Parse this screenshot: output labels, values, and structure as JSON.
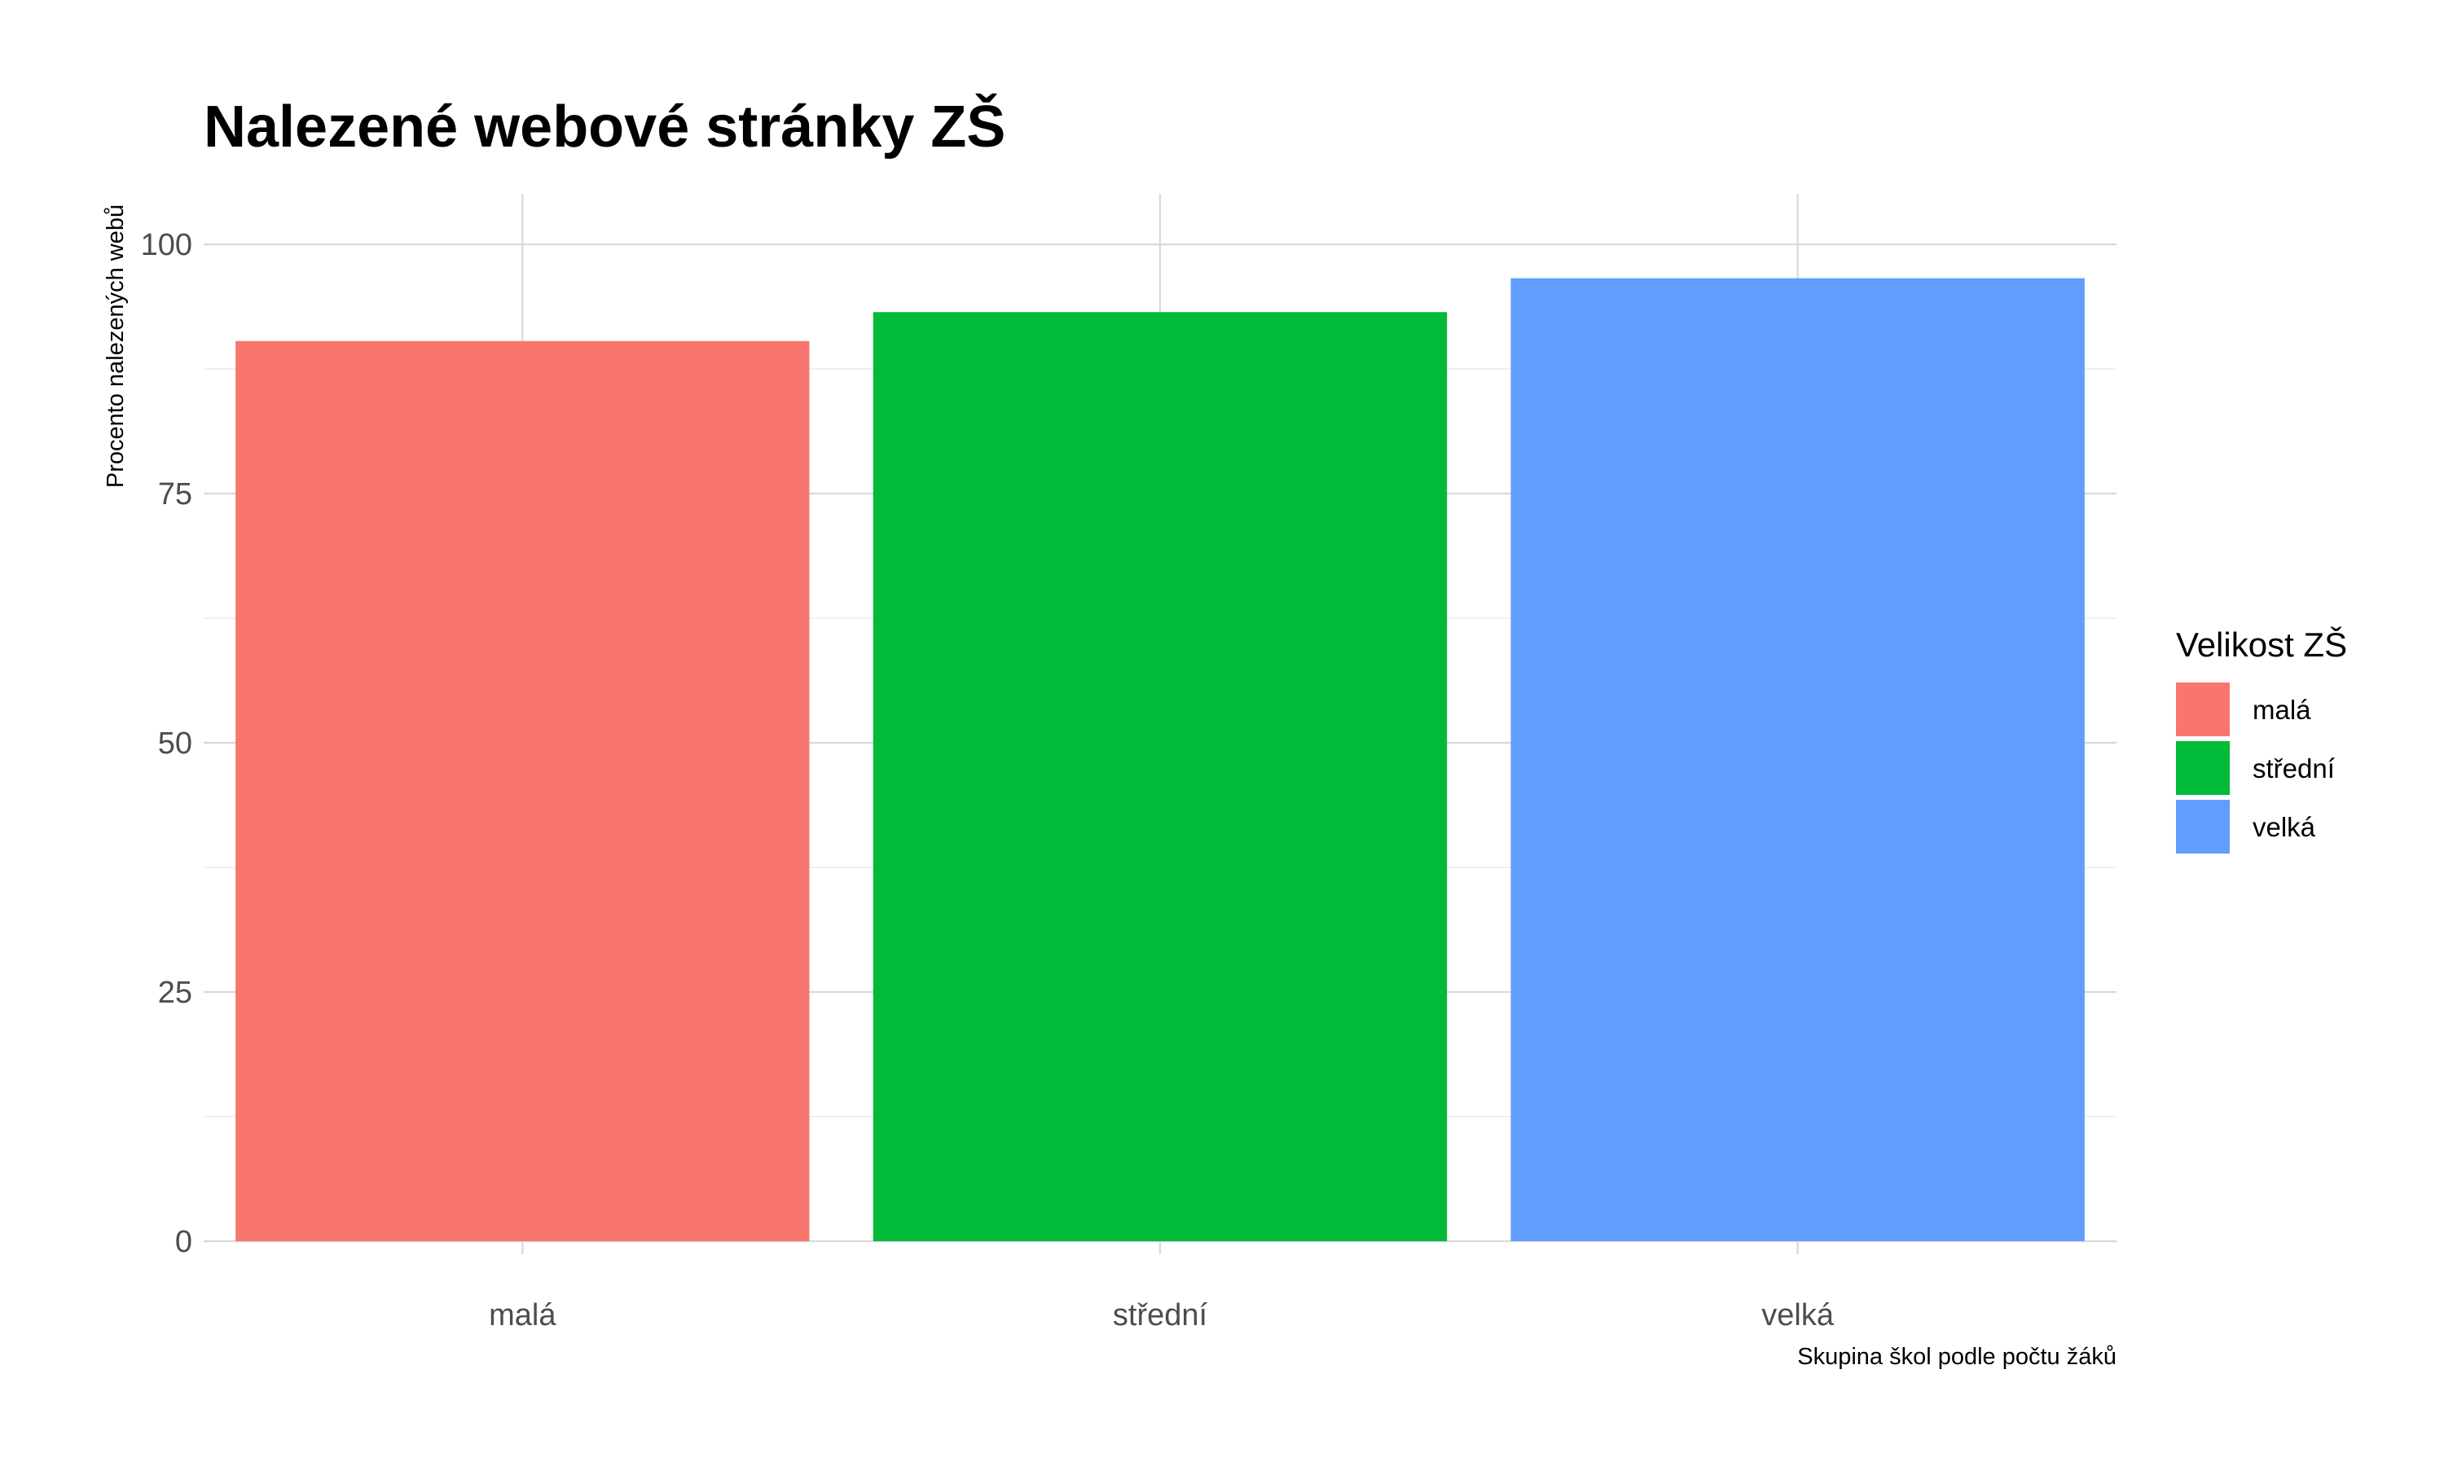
{
  "chart_data": {
    "type": "bar",
    "title": "Nalezené webové stránky ZŠ",
    "xlabel": "Skupina škol podle počtu žáků",
    "ylabel": "Procento nalezených webů",
    "categories": [
      "malá",
      "střední",
      "velká"
    ],
    "values": [
      90.3,
      93.2,
      96.6
    ],
    "colors": [
      "#F8766D",
      "#00BA38",
      "#619CFF"
    ],
    "ylim": [
      0,
      100
    ],
    "yticks": [
      0,
      25,
      50,
      75,
      100
    ],
    "ytick_labels": [
      "0",
      "25",
      "50",
      "75",
      "100"
    ],
    "grid": true,
    "legend": {
      "title": "Velikost ZŠ",
      "position": "right",
      "entries": [
        "malá",
        "střední",
        "velká"
      ]
    }
  }
}
